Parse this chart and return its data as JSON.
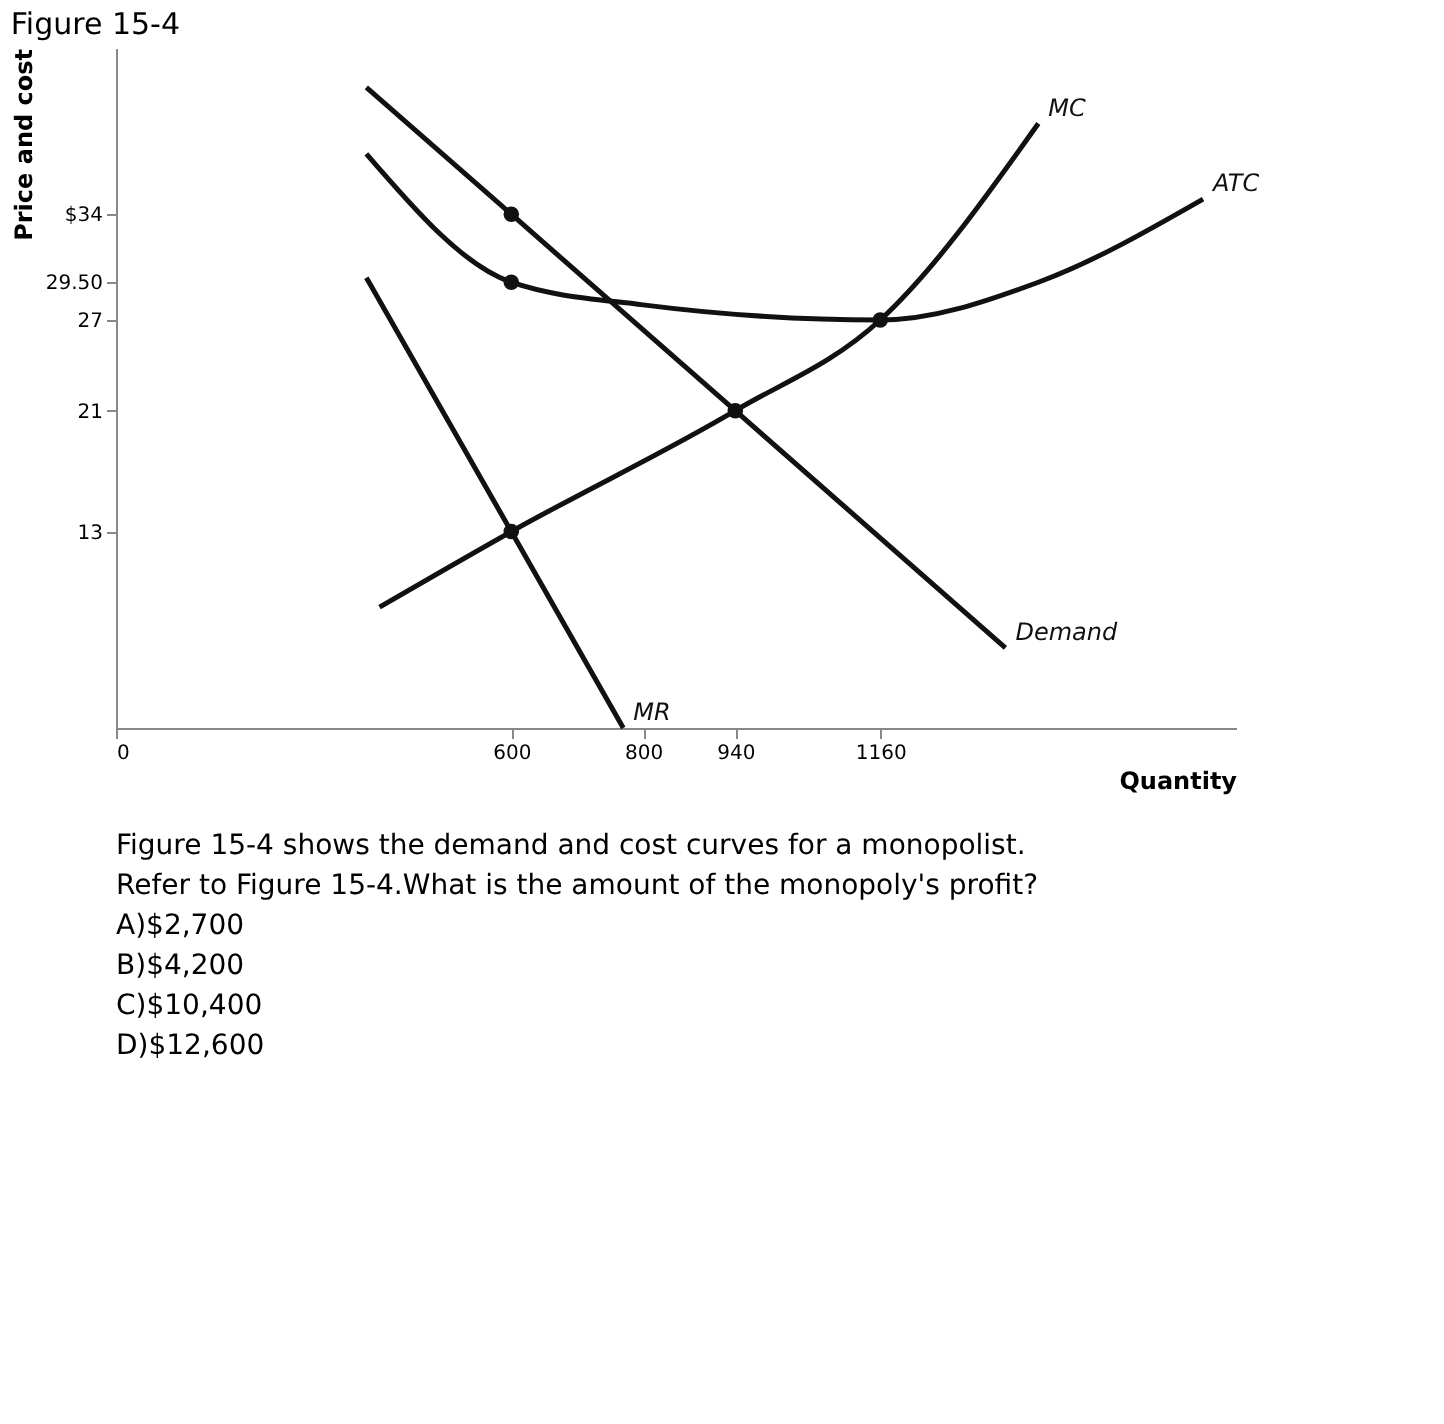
{
  "chart_data": {
    "type": "line",
    "title": "Figure 15-4",
    "xlabel": "Quantity",
    "ylabel": "Price and cost",
    "xlim": [
      0,
      1700
    ],
    "ylim": [
      0,
      45
    ],
    "xticks": [
      0,
      600,
      800,
      940,
      1160
    ],
    "yticks": [
      13,
      21,
      27,
      {
        "value": 29.5,
        "label": "29.50"
      },
      {
        "value": 34,
        "label": "$34"
      }
    ],
    "grid": false,
    "line_style": "solid",
    "series": [
      {
        "name": "Demand",
        "color": "#111111",
        "x": [
          380,
          600,
          940,
          1350
        ],
        "values": [
          42.4,
          34,
          21,
          5.3
        ]
      },
      {
        "name": "MR",
        "color": "#111111",
        "x": [
          380,
          600,
          770
        ],
        "values": [
          29.8,
          13,
          0
        ]
      },
      {
        "name": "MC",
        "color": "#111111",
        "x": [
          400,
          600,
          940,
          1160,
          1400
        ],
        "values": [
          8,
          13,
          21,
          27,
          40
        ]
      },
      {
        "name": "ATC",
        "color": "#111111",
        "x": [
          380,
          600,
          800,
          1160,
          1400,
          1650
        ],
        "values": [
          38,
          29.5,
          28,
          27,
          29.5,
          35
        ]
      },
      {
        "type": "scatter",
        "marker": "circle",
        "color": "#111111",
        "x": [
          600,
          600,
          600,
          940,
          1160
        ],
        "values": [
          34,
          29.5,
          13,
          21,
          27
        ]
      }
    ],
    "annotations": [
      "Figure 15-4 shows the demand and cost curves for a monopolist.",
      "Refer to Figure 15-4.What is the amount of the monopoly's profit?",
      "A)$2,700",
      "B)$4,200",
      "C)$10,400",
      "D)$12,600"
    ]
  }
}
